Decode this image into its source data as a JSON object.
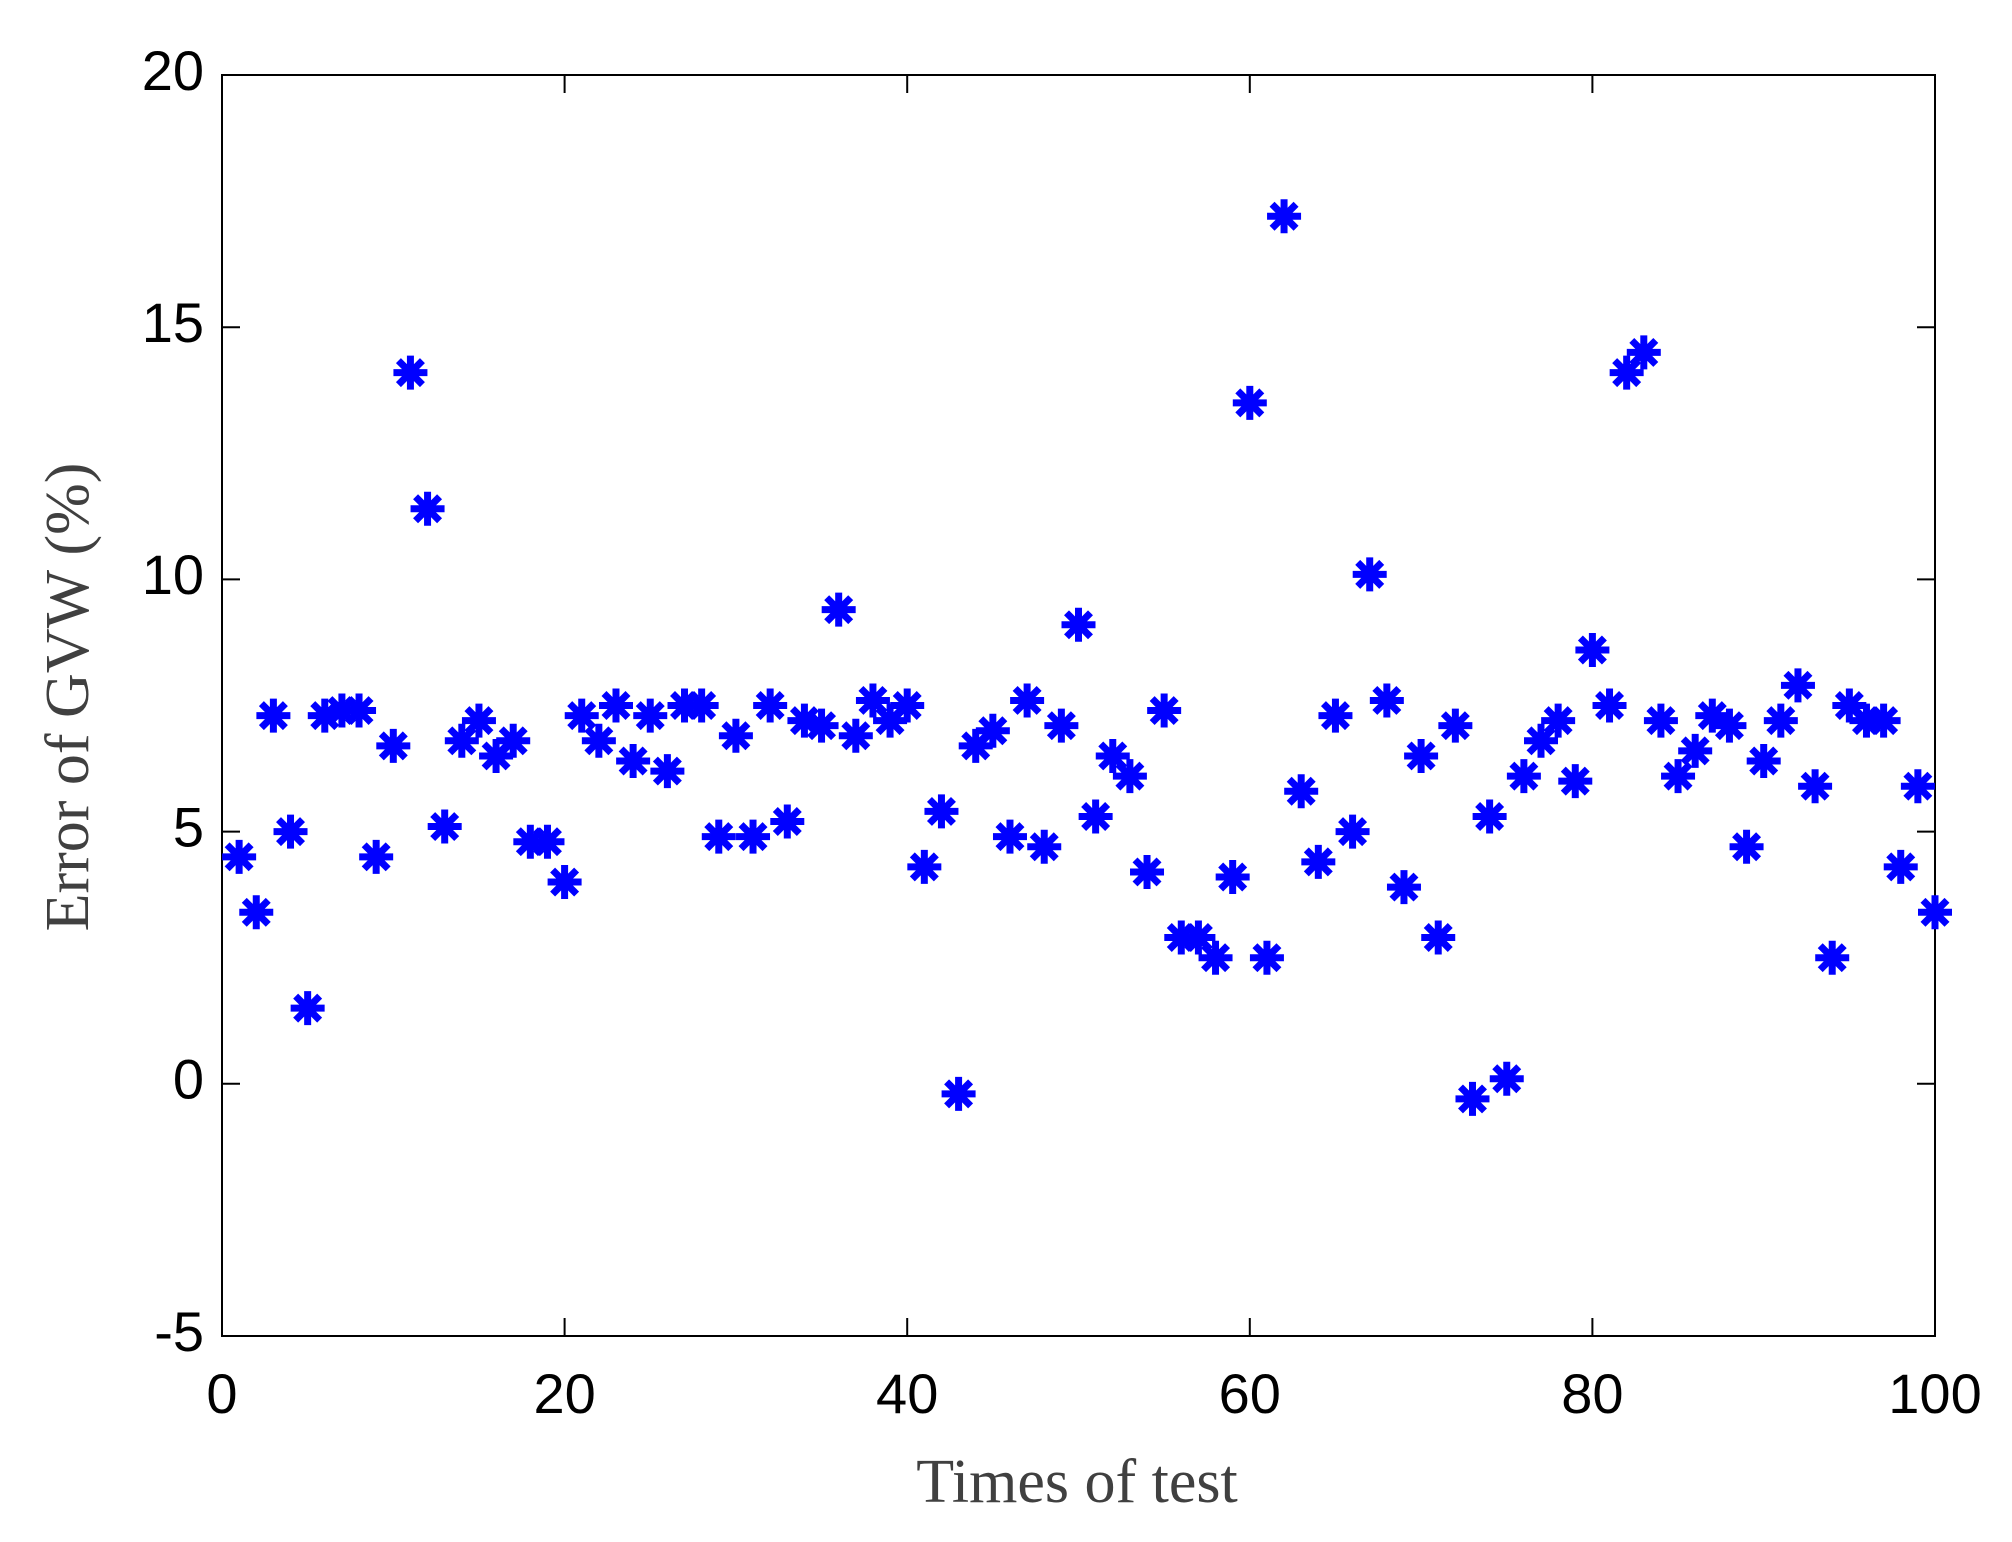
{
  "chart_data": {
    "type": "scatter",
    "x_label": "Times of test",
    "y_label": "Error of GVW (%)",
    "series": [
      {
        "color": "#0000ff",
        "x": [
          1,
          2,
          3,
          4,
          5,
          6,
          7,
          8,
          9,
          10,
          11,
          12,
          13,
          14,
          15,
          16,
          17,
          18,
          19,
          20,
          21,
          22,
          23,
          24,
          25,
          26,
          27,
          28,
          29,
          30,
          31,
          32,
          33,
          34,
          35,
          36,
          37,
          38,
          39,
          40,
          41,
          42,
          43,
          44,
          45,
          46,
          47,
          48,
          49,
          50,
          51,
          52,
          53,
          54,
          55,
          56,
          57,
          58,
          59,
          60,
          61,
          62,
          63,
          64,
          65,
          66,
          67,
          68,
          69,
          70,
          71,
          72,
          73,
          74,
          75,
          76,
          77,
          78,
          79,
          80,
          81,
          82,
          83,
          84,
          85,
          86,
          87,
          88,
          89,
          90,
          91,
          92,
          93,
          94,
          95,
          96,
          97,
          98,
          99,
          100
        ],
        "values": [
          4.5,
          3.4,
          7.3,
          5.0,
          1.5,
          7.3,
          7.4,
          7.4,
          4.5,
          6.7,
          14.1,
          11.4,
          5.1,
          6.8,
          7.2,
          6.5,
          6.8,
          4.8,
          4.8,
          4.0,
          7.3,
          6.8,
          7.5,
          6.4,
          7.3,
          6.2,
          7.5,
          7.5,
          4.9,
          6.9,
          4.9,
          7.5,
          5.2,
          7.2,
          7.1,
          9.4,
          6.9,
          7.6,
          7.2,
          7.5,
          4.3,
          5.4,
          -0.2,
          6.7,
          7.0,
          4.9,
          7.6,
          4.7,
          7.1,
          9.1,
          5.3,
          6.5,
          6.1,
          4.2,
          7.4,
          2.9,
          2.9,
          2.5,
          4.1,
          13.5,
          2.5,
          17.2,
          5.8,
          4.4,
          7.3,
          5.0,
          10.1,
          7.6,
          3.9,
          6.5,
          2.9,
          7.1,
          -0.3,
          5.3,
          0.1,
          6.1,
          6.8,
          7.2,
          6.0,
          8.6,
          7.5,
          14.1,
          14.5,
          7.2,
          6.1,
          6.6,
          7.3,
          7.1,
          4.7,
          6.4,
          7.2,
          7.9,
          5.9,
          2.5,
          7.5,
          7.2,
          7.2,
          4.3,
          5.9,
          3.4
        ]
      }
    ],
    "xlim": [
      0,
      100
    ],
    "xticks": [
      0,
      20,
      40,
      60,
      80,
      100
    ],
    "ylim": [
      -5,
      20
    ],
    "yticks": [
      -5,
      0,
      5,
      10,
      15,
      20
    ],
    "grid": false
  }
}
